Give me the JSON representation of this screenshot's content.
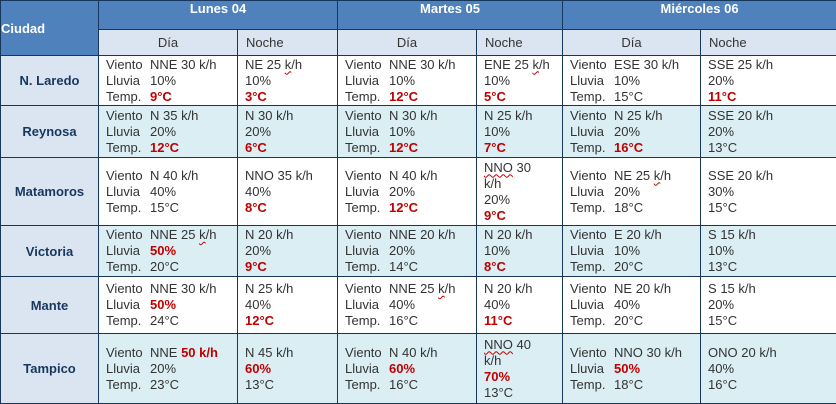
{
  "header": {
    "city_label": "Ciudad",
    "days": [
      "Lunes 04",
      "Martes 05",
      "Miércoles 06"
    ],
    "period_day": "Día",
    "period_night": "Noche"
  },
  "labels": {
    "wind": "Viento",
    "rain": "Lluvia",
    "temp": "Temp."
  },
  "rows": [
    {
      "city": "N. Laredo",
      "l_d_w": "NNE 30 k/h",
      "l_d_r": "10%",
      "l_d_t": "9°C",
      "l_n_w1": "NE 25 ",
      "l_n_w2": "k",
      "l_n_w3": "/h",
      "l_n_r": "10%",
      "l_n_t": "3°C",
      "m_d_w": "NNE 30 k/h",
      "m_d_r": "10%",
      "m_d_t": "12°C",
      "m_n_w1": "ENE 25 ",
      "m_n_w2": "k",
      "m_n_w3": "/h",
      "m_n_r": "10%",
      "m_n_t": "5°C",
      "x_d_w": "ESE 30 k/h",
      "x_d_r": "10%",
      "x_d_t": "15°C",
      "x_n_w": "SSE 25 k/h",
      "x_n_r": "20%",
      "x_n_t": "11°C"
    },
    {
      "city": "Reynosa",
      "l_d_w": "N 35 k/h",
      "l_d_r": "20%",
      "l_d_t": "12°C",
      "l_n_w": "N 30 k/h",
      "l_n_r": "20%",
      "l_n_t": "6°C",
      "m_d_w": "N 30 k/h",
      "m_d_r": "10%",
      "m_d_t": "12°C",
      "m_n_w": "N 25 k/h",
      "m_n_r": "10%",
      "m_n_t": "7°C",
      "x_d_w": "N 25 k/h",
      "x_d_r": "20%",
      "x_d_t": "16°C",
      "x_n_w": "SSE 20 k/h",
      "x_n_r": "20%",
      "x_n_t": "13°C"
    },
    {
      "city": "Matamoros",
      "l_d_w": "N 40 k/h",
      "l_d_r": "40%",
      "l_d_t": "15°C",
      "l_n_w": "NNO 35 k/h",
      "l_n_r": "40%",
      "l_n_t": "8°C",
      "m_d_w": "N 40 k/h",
      "m_d_r": "20%",
      "m_d_t": "12°C",
      "m_n_w1": "NNO",
      "m_n_w1b": " 30",
      "m_n_w2": "k/h",
      "m_n_r": "20%",
      "m_n_t": "9°C",
      "x_d_w1": "NE 25 ",
      "x_d_w2": "k",
      "x_d_w3": "/h",
      "x_d_r": "20%",
      "x_d_t": "18°C",
      "x_n_w": "SSE 20 k/h",
      "x_n_r": "30%",
      "x_n_t": "15°C"
    },
    {
      "city": "Victoria",
      "l_d_w1": "NNE 25 ",
      "l_d_w2": "k",
      "l_d_w3": "/h",
      "l_d_r": "50%",
      "l_d_t": "20°C",
      "l_n_w": "N 20 k/h",
      "l_n_r": "20%",
      "l_n_t": "9°C",
      "m_d_w": "NNE 20 k/h",
      "m_d_r": "20%",
      "m_d_t": "14°C",
      "m_n_w": "N 20 k/h",
      "m_n_r": "10%",
      "m_n_t": "8°C",
      "x_d_w": "E 20 k/h",
      "x_d_r": "10%",
      "x_d_t": "20°C",
      "x_n_w": "S 15 k/h",
      "x_n_r": "10%",
      "x_n_t": "13°C"
    },
    {
      "city": "Mante",
      "l_d_w": "NNE 30 k/h",
      "l_d_r": "50%",
      "l_d_t": "24°C",
      "l_n_w": "N 25 k/h",
      "l_n_r": "40%",
      "l_n_t": "12°C",
      "m_d_w1": "NNE 25 ",
      "m_d_w2": "k",
      "m_d_w3": "/h",
      "m_d_r": "40%",
      "m_d_t": "16°C",
      "m_n_w": "N 20 k/h",
      "m_n_r": "40%",
      "m_n_t": "11°C",
      "x_d_w": "NE 20 k/h",
      "x_d_r": "40%",
      "x_d_t": "20°C",
      "x_n_w": "S 15 k/h",
      "x_n_r": "20%",
      "x_n_t": "15°C"
    },
    {
      "city": "Tampico",
      "l_d_w1": "NNE ",
      "l_d_w2": "50 k/h",
      "l_d_r": "20%",
      "l_d_t": "23°C",
      "l_n_w": "N 45 k/h",
      "l_n_r": "60%",
      "l_n_t": "13°C",
      "m_d_w": "N 40 k/h",
      "m_d_r": "60%",
      "m_d_t": "16°C",
      "m_n_w1": "NNO",
      "m_n_w1b": " 40",
      "m_n_w2": "k/h",
      "m_n_r": "70%",
      "m_n_t": "13°C",
      "x_d_w": "NNO 30 k/h",
      "x_d_r": "50%",
      "x_d_t": "18°C",
      "x_n_w": "ONO 20 k/h",
      "x_n_r": "40%",
      "x_n_t": "16°C"
    }
  ],
  "colors": {
    "header_blue": "#4f81bd",
    "subheader": "#dbe5f1",
    "row_alt": "#daeef3",
    "highlight_red": "#c00000"
  }
}
